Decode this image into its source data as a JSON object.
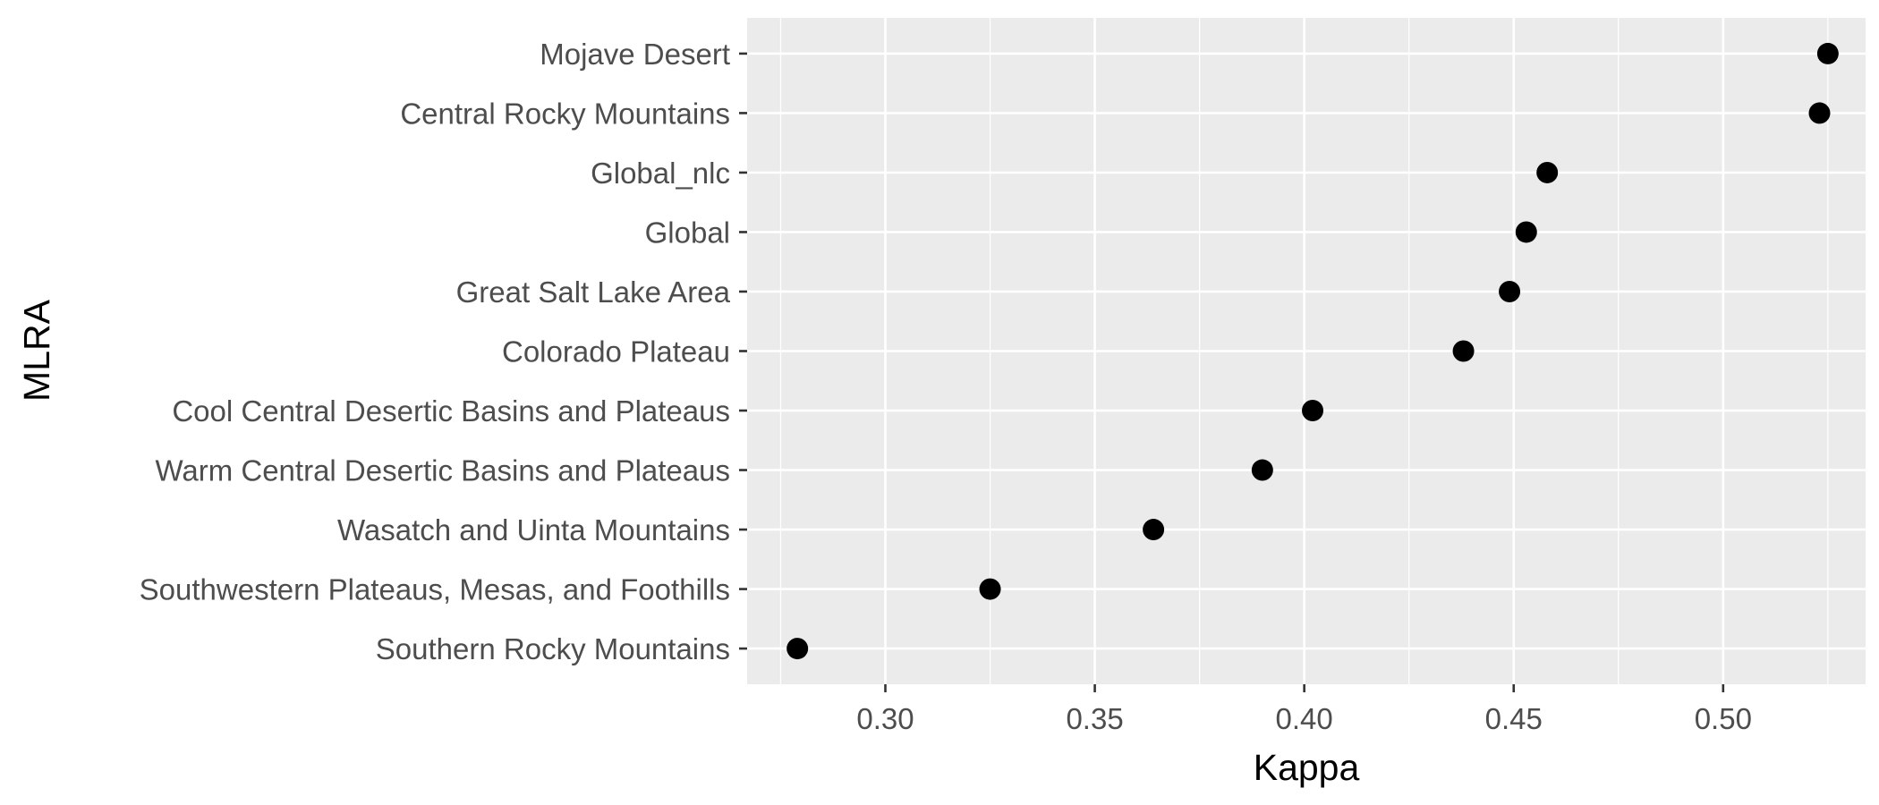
{
  "chart_data": {
    "type": "scatter",
    "orientation": "dot-plot, categories on y-axis",
    "xlabel": "Kappa",
    "ylabel": "MLRA",
    "xlim": [
      0.267,
      0.534
    ],
    "x_ticks": [
      "0.30",
      "0.35",
      "0.40",
      "0.45",
      "0.50"
    ],
    "x_tick_values": [
      0.3,
      0.35,
      0.4,
      0.45,
      0.5
    ],
    "grid": true,
    "panel_background": "#ebebeb",
    "point_color": "#000000",
    "categories": [
      "Mojave Desert",
      "Central Rocky Mountains",
      "Global_nlc",
      "Global",
      "Great Salt Lake Area",
      "Colorado Plateau",
      "Cool Central Desertic Basins and Plateaus",
      "Warm Central Desertic Basins and Plateaus",
      "Wasatch and Uinta Mountains",
      "Southwestern Plateaus, Mesas, and Foothills",
      "Southern Rocky Mountains"
    ],
    "values": [
      0.525,
      0.523,
      0.458,
      0.453,
      0.449,
      0.438,
      0.402,
      0.39,
      0.364,
      0.325,
      0.279
    ]
  }
}
